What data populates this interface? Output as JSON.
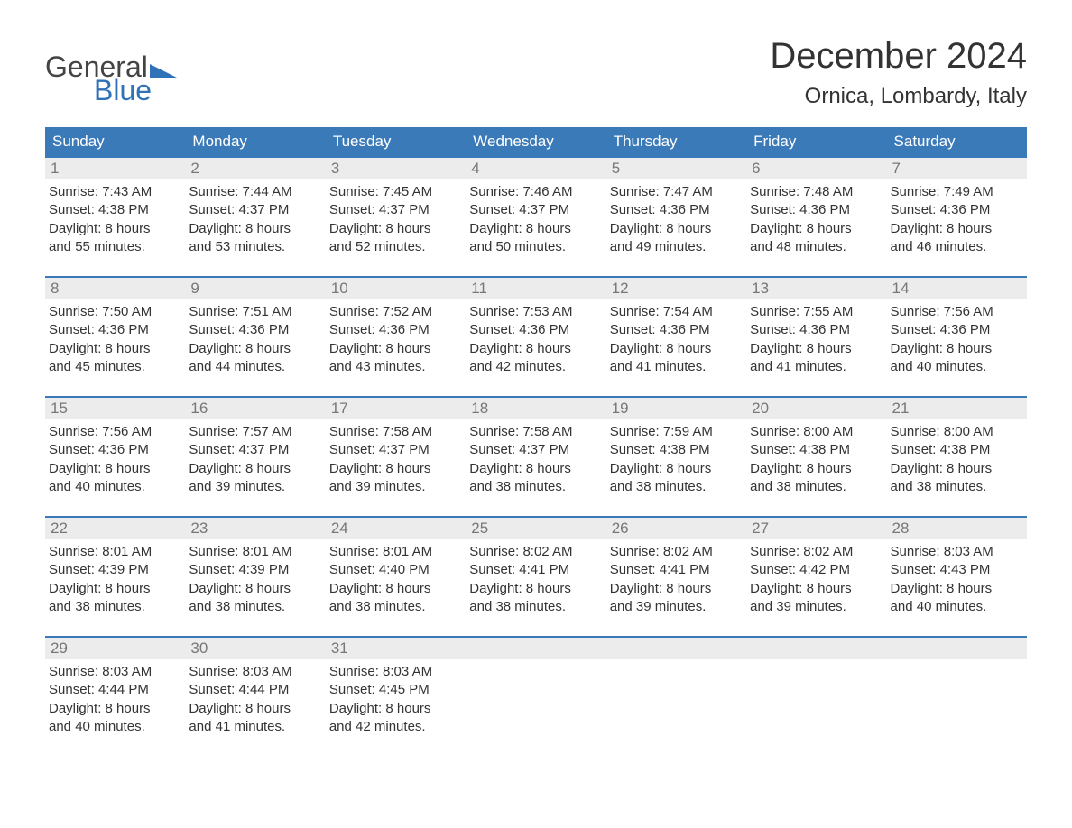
{
  "logo": {
    "text_top": "General",
    "text_bottom": "Blue",
    "accent_color": "#2f72b8"
  },
  "title": "December 2024",
  "location": "Ornica, Lombardy, Italy",
  "colors": {
    "header_bg": "#3b7ab8",
    "header_text": "#ffffff",
    "daynum_bg": "#ececec",
    "daynum_text": "#777777",
    "week_border": "#3b7ab8",
    "body_text": "#333333",
    "page_bg": "#ffffff"
  },
  "days_of_week": [
    "Sunday",
    "Monday",
    "Tuesday",
    "Wednesday",
    "Thursday",
    "Friday",
    "Saturday"
  ],
  "weeks": [
    [
      {
        "n": "1",
        "sunrise": "Sunrise: 7:43 AM",
        "sunset": "Sunset: 4:38 PM",
        "daylight1": "Daylight: 8 hours",
        "daylight2": "and 55 minutes."
      },
      {
        "n": "2",
        "sunrise": "Sunrise: 7:44 AM",
        "sunset": "Sunset: 4:37 PM",
        "daylight1": "Daylight: 8 hours",
        "daylight2": "and 53 minutes."
      },
      {
        "n": "3",
        "sunrise": "Sunrise: 7:45 AM",
        "sunset": "Sunset: 4:37 PM",
        "daylight1": "Daylight: 8 hours",
        "daylight2": "and 52 minutes."
      },
      {
        "n": "4",
        "sunrise": "Sunrise: 7:46 AM",
        "sunset": "Sunset: 4:37 PM",
        "daylight1": "Daylight: 8 hours",
        "daylight2": "and 50 minutes."
      },
      {
        "n": "5",
        "sunrise": "Sunrise: 7:47 AM",
        "sunset": "Sunset: 4:36 PM",
        "daylight1": "Daylight: 8 hours",
        "daylight2": "and 49 minutes."
      },
      {
        "n": "6",
        "sunrise": "Sunrise: 7:48 AM",
        "sunset": "Sunset: 4:36 PM",
        "daylight1": "Daylight: 8 hours",
        "daylight2": "and 48 minutes."
      },
      {
        "n": "7",
        "sunrise": "Sunrise: 7:49 AM",
        "sunset": "Sunset: 4:36 PM",
        "daylight1": "Daylight: 8 hours",
        "daylight2": "and 46 minutes."
      }
    ],
    [
      {
        "n": "8",
        "sunrise": "Sunrise: 7:50 AM",
        "sunset": "Sunset: 4:36 PM",
        "daylight1": "Daylight: 8 hours",
        "daylight2": "and 45 minutes."
      },
      {
        "n": "9",
        "sunrise": "Sunrise: 7:51 AM",
        "sunset": "Sunset: 4:36 PM",
        "daylight1": "Daylight: 8 hours",
        "daylight2": "and 44 minutes."
      },
      {
        "n": "10",
        "sunrise": "Sunrise: 7:52 AM",
        "sunset": "Sunset: 4:36 PM",
        "daylight1": "Daylight: 8 hours",
        "daylight2": "and 43 minutes."
      },
      {
        "n": "11",
        "sunrise": "Sunrise: 7:53 AM",
        "sunset": "Sunset: 4:36 PM",
        "daylight1": "Daylight: 8 hours",
        "daylight2": "and 42 minutes."
      },
      {
        "n": "12",
        "sunrise": "Sunrise: 7:54 AM",
        "sunset": "Sunset: 4:36 PM",
        "daylight1": "Daylight: 8 hours",
        "daylight2": "and 41 minutes."
      },
      {
        "n": "13",
        "sunrise": "Sunrise: 7:55 AM",
        "sunset": "Sunset: 4:36 PM",
        "daylight1": "Daylight: 8 hours",
        "daylight2": "and 41 minutes."
      },
      {
        "n": "14",
        "sunrise": "Sunrise: 7:56 AM",
        "sunset": "Sunset: 4:36 PM",
        "daylight1": "Daylight: 8 hours",
        "daylight2": "and 40 minutes."
      }
    ],
    [
      {
        "n": "15",
        "sunrise": "Sunrise: 7:56 AM",
        "sunset": "Sunset: 4:36 PM",
        "daylight1": "Daylight: 8 hours",
        "daylight2": "and 40 minutes."
      },
      {
        "n": "16",
        "sunrise": "Sunrise: 7:57 AM",
        "sunset": "Sunset: 4:37 PM",
        "daylight1": "Daylight: 8 hours",
        "daylight2": "and 39 minutes."
      },
      {
        "n": "17",
        "sunrise": "Sunrise: 7:58 AM",
        "sunset": "Sunset: 4:37 PM",
        "daylight1": "Daylight: 8 hours",
        "daylight2": "and 39 minutes."
      },
      {
        "n": "18",
        "sunrise": "Sunrise: 7:58 AM",
        "sunset": "Sunset: 4:37 PM",
        "daylight1": "Daylight: 8 hours",
        "daylight2": "and 38 minutes."
      },
      {
        "n": "19",
        "sunrise": "Sunrise: 7:59 AM",
        "sunset": "Sunset: 4:38 PM",
        "daylight1": "Daylight: 8 hours",
        "daylight2": "and 38 minutes."
      },
      {
        "n": "20",
        "sunrise": "Sunrise: 8:00 AM",
        "sunset": "Sunset: 4:38 PM",
        "daylight1": "Daylight: 8 hours",
        "daylight2": "and 38 minutes."
      },
      {
        "n": "21",
        "sunrise": "Sunrise: 8:00 AM",
        "sunset": "Sunset: 4:38 PM",
        "daylight1": "Daylight: 8 hours",
        "daylight2": "and 38 minutes."
      }
    ],
    [
      {
        "n": "22",
        "sunrise": "Sunrise: 8:01 AM",
        "sunset": "Sunset: 4:39 PM",
        "daylight1": "Daylight: 8 hours",
        "daylight2": "and 38 minutes."
      },
      {
        "n": "23",
        "sunrise": "Sunrise: 8:01 AM",
        "sunset": "Sunset: 4:39 PM",
        "daylight1": "Daylight: 8 hours",
        "daylight2": "and 38 minutes."
      },
      {
        "n": "24",
        "sunrise": "Sunrise: 8:01 AM",
        "sunset": "Sunset: 4:40 PM",
        "daylight1": "Daylight: 8 hours",
        "daylight2": "and 38 minutes."
      },
      {
        "n": "25",
        "sunrise": "Sunrise: 8:02 AM",
        "sunset": "Sunset: 4:41 PM",
        "daylight1": "Daylight: 8 hours",
        "daylight2": "and 38 minutes."
      },
      {
        "n": "26",
        "sunrise": "Sunrise: 8:02 AM",
        "sunset": "Sunset: 4:41 PM",
        "daylight1": "Daylight: 8 hours",
        "daylight2": "and 39 minutes."
      },
      {
        "n": "27",
        "sunrise": "Sunrise: 8:02 AM",
        "sunset": "Sunset: 4:42 PM",
        "daylight1": "Daylight: 8 hours",
        "daylight2": "and 39 minutes."
      },
      {
        "n": "28",
        "sunrise": "Sunrise: 8:03 AM",
        "sunset": "Sunset: 4:43 PM",
        "daylight1": "Daylight: 8 hours",
        "daylight2": "and 40 minutes."
      }
    ],
    [
      {
        "n": "29",
        "sunrise": "Sunrise: 8:03 AM",
        "sunset": "Sunset: 4:44 PM",
        "daylight1": "Daylight: 8 hours",
        "daylight2": "and 40 minutes."
      },
      {
        "n": "30",
        "sunrise": "Sunrise: 8:03 AM",
        "sunset": "Sunset: 4:44 PM",
        "daylight1": "Daylight: 8 hours",
        "daylight2": "and 41 minutes."
      },
      {
        "n": "31",
        "sunrise": "Sunrise: 8:03 AM",
        "sunset": "Sunset: 4:45 PM",
        "daylight1": "Daylight: 8 hours",
        "daylight2": "and 42 minutes."
      },
      {
        "empty": true
      },
      {
        "empty": true
      },
      {
        "empty": true
      },
      {
        "empty": true
      }
    ]
  ]
}
